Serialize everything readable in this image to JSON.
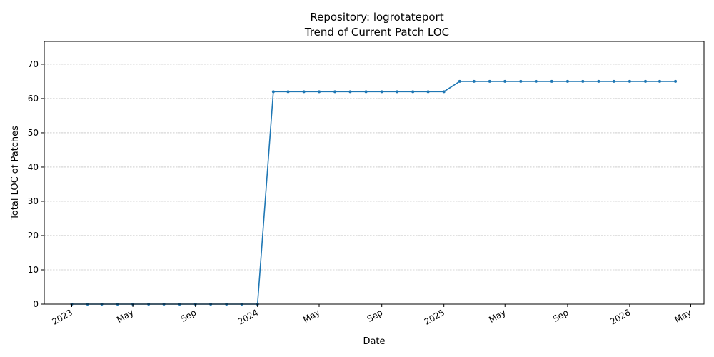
{
  "chart_data": {
    "type": "line",
    "title": "Repository: logrotateport",
    "subtitle": "Trend of Current Patch LOC",
    "xlabel": "Date",
    "ylabel": "Total LOC of Patches",
    "ylim": [
      0,
      76.65
    ],
    "xlim": [
      "2022-11-08",
      "2026-05-27"
    ],
    "yticks": [
      0,
      10,
      20,
      30,
      40,
      50,
      60,
      70
    ],
    "xticks": [
      {
        "date": "2023-01-01",
        "label": "2023"
      },
      {
        "date": "2023-05-01",
        "label": "May"
      },
      {
        "date": "2023-09-01",
        "label": "Sep"
      },
      {
        "date": "2024-01-01",
        "label": "2024"
      },
      {
        "date": "2024-05-01",
        "label": "May"
      },
      {
        "date": "2024-09-01",
        "label": "Sep"
      },
      {
        "date": "2025-01-01",
        "label": "2025"
      },
      {
        "date": "2025-05-01",
        "label": "May"
      },
      {
        "date": "2025-09-01",
        "label": "Sep"
      },
      {
        "date": "2026-01-01",
        "label": "2026"
      },
      {
        "date": "2026-05-01",
        "label": "May"
      }
    ],
    "grid": "y",
    "color": "#1f77b4",
    "series": [
      {
        "x": [
          "2023-01-01",
          "2023-02-01",
          "2023-03-01",
          "2023-04-01",
          "2023-05-01",
          "2023-06-01",
          "2023-07-01",
          "2023-08-01",
          "2023-09-01",
          "2023-10-01",
          "2023-11-01",
          "2023-12-01",
          "2024-01-01",
          "2024-02-01",
          "2024-03-01",
          "2024-04-01",
          "2024-05-01",
          "2024-06-01",
          "2024-07-01",
          "2024-08-01",
          "2024-09-01",
          "2024-10-01",
          "2024-11-01",
          "2024-12-01",
          "2025-01-01",
          "2025-02-01",
          "2025-03-01",
          "2025-04-01",
          "2025-05-01",
          "2025-06-01",
          "2025-07-01",
          "2025-08-01",
          "2025-09-01",
          "2025-10-01",
          "2025-11-01",
          "2025-12-01",
          "2026-01-01",
          "2026-02-01",
          "2026-03-01",
          "2026-04-01"
        ],
        "values": [
          0,
          0,
          0,
          0,
          0,
          0,
          0,
          0,
          0,
          0,
          0,
          0,
          0,
          62,
          62,
          62,
          62,
          62,
          62,
          62,
          62,
          62,
          62,
          62,
          62,
          65,
          65,
          65,
          65,
          65,
          65,
          65,
          65,
          65,
          65,
          65,
          65,
          65,
          65,
          65
        ]
      }
    ]
  }
}
